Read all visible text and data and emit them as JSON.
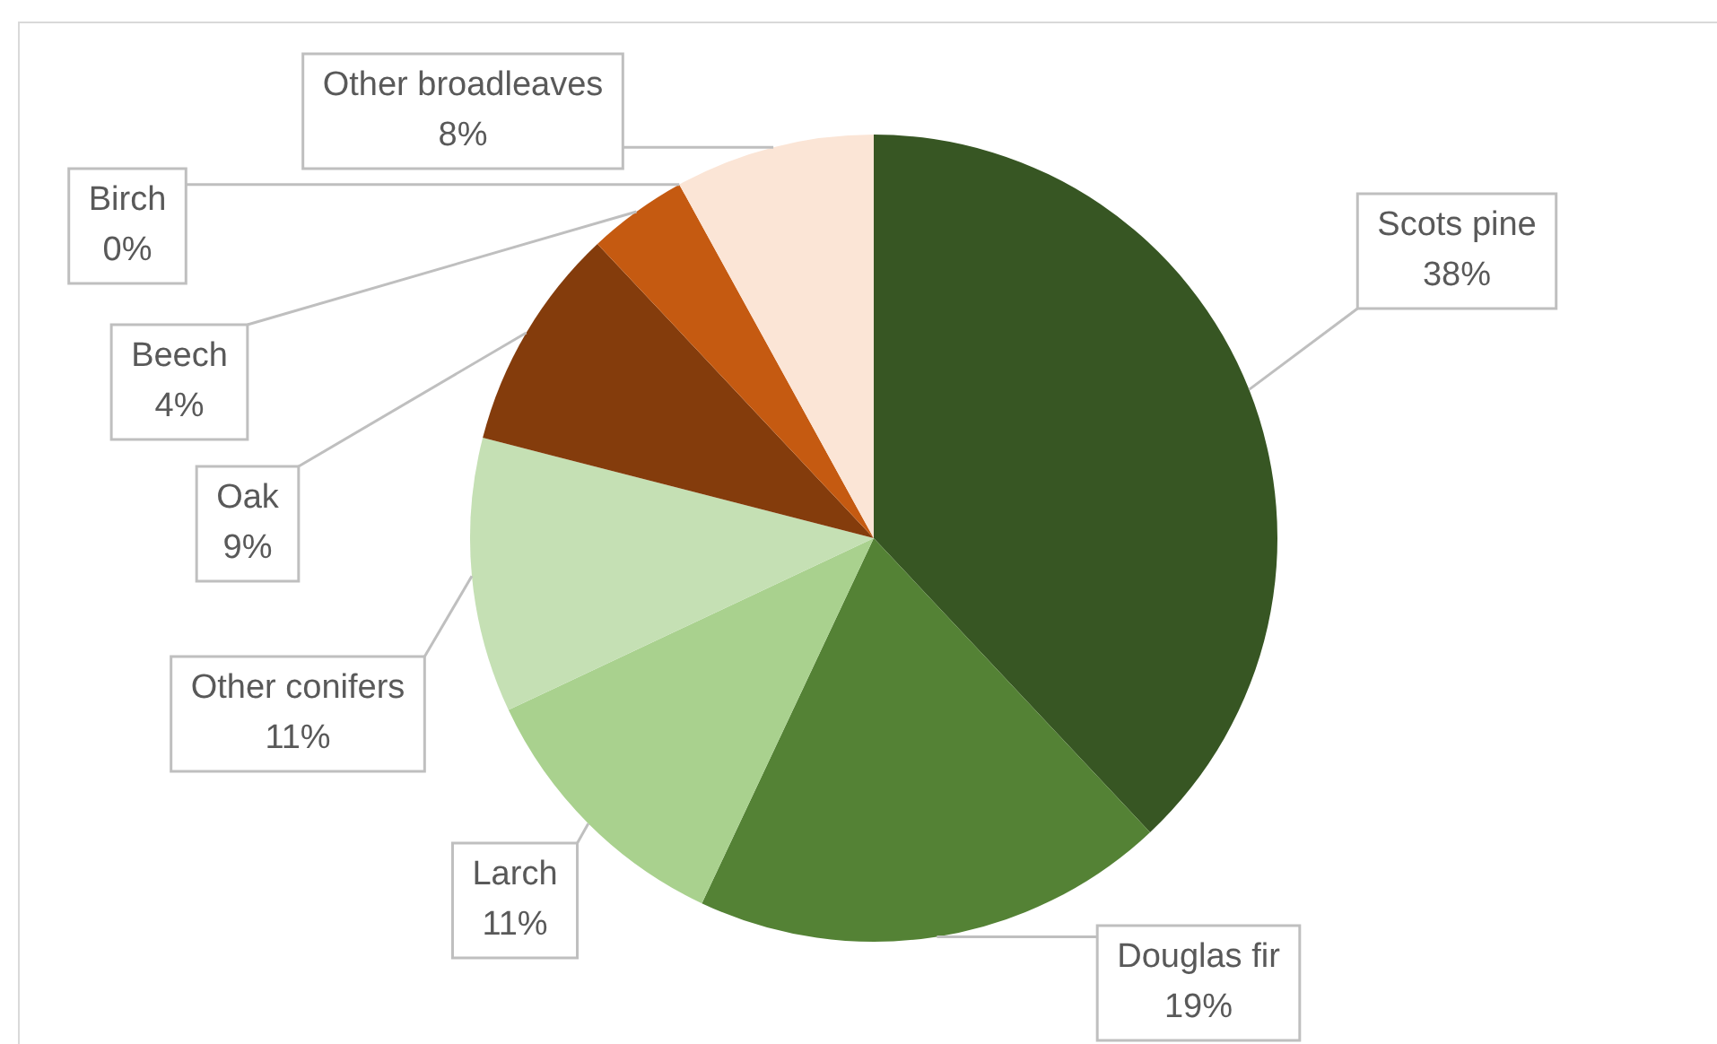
{
  "chart_data": {
    "type": "pie",
    "categories": [
      "Scots pine",
      "Douglas fir",
      "Larch",
      "Other conifers",
      "Oak",
      "Beech",
      "Birch",
      "Other broadleaves"
    ],
    "values": [
      38,
      19,
      11,
      11,
      9,
      4,
      0,
      8
    ],
    "colors": [
      "#375623",
      "#548235",
      "#a9d18e",
      "#c5e0b4",
      "#843c0c",
      "#c55a11",
      "#f4b183",
      "#fbe5d6"
    ],
    "value_labels": [
      "38%",
      "19%",
      "11%",
      "11%",
      "9%",
      "4%",
      "0%",
      "8%"
    ],
    "legend": false
  }
}
